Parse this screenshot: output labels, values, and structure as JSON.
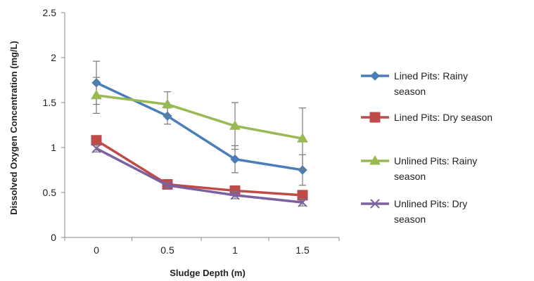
{
  "chart_data": {
    "type": "line",
    "xlabel": "Sludge Depth (m)",
    "ylabel": "Dissolved Oxygen Concentration (mg/L)",
    "x": [
      0,
      0.5,
      1,
      1.5
    ],
    "x_tick_labels": [
      "0",
      "0.5",
      "1",
      "1.5"
    ],
    "ylim": [
      0,
      2.5
    ],
    "y_ticks": [
      0,
      0.5,
      1,
      1.5,
      2,
      2.5
    ],
    "y_tick_labels": [
      "0",
      "0.5",
      "1",
      "1.5",
      "2",
      "2.5"
    ],
    "grid": false,
    "legend_position": "right",
    "series": [
      {
        "name": "Lined Pits: Rainy season",
        "legend_lines": [
          "Lined Pits: Rainy",
          "season"
        ],
        "color": "#4a7ebb",
        "marker": "diamond",
        "values": [
          1.72,
          1.35,
          0.87,
          0.75
        ],
        "error": [
          0.24,
          0.09,
          0.15,
          0.17
        ]
      },
      {
        "name": "Lined Pits: Dry season",
        "legend_lines": [
          "Lined Pits: Dry season"
        ],
        "color": "#be4b48",
        "marker": "square",
        "values": [
          1.08,
          0.59,
          0.52,
          0.47
        ],
        "error": [
          0.05,
          0.03,
          0.03,
          0.04
        ]
      },
      {
        "name": "Unlined Pits: Rainy season",
        "legend_lines": [
          "Unlined Pits: Rainy",
          "season"
        ],
        "color": "#98b954",
        "marker": "triangle",
        "values": [
          1.58,
          1.48,
          1.24,
          1.1
        ],
        "error": [
          0.2,
          0.14,
          0.26,
          0.34
        ]
      },
      {
        "name": "Unlined Pits: Dry season",
        "legend_lines": [
          "Unlined Pits: Dry",
          "season"
        ],
        "color": "#7d60a0",
        "marker": "x",
        "values": [
          0.99,
          0.58,
          0.47,
          0.39
        ],
        "error": [
          0.04,
          0.03,
          0.04,
          0.04
        ]
      }
    ]
  }
}
